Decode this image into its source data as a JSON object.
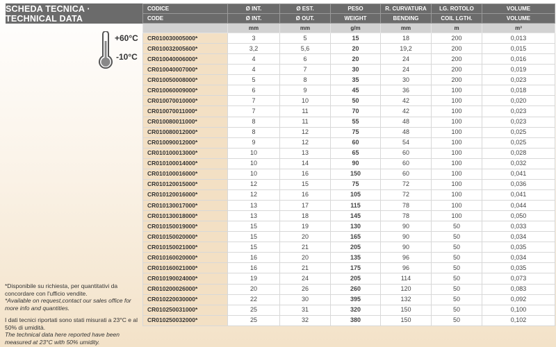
{
  "title": "SCHEDA TECNICA · TECHNICAL DATA",
  "temperature": {
    "max": "+60°C",
    "min": "-10°C",
    "icon": "thermometer-icon"
  },
  "header_it": [
    "CODICE",
    "Ø INT.",
    "Ø EST.",
    "PESO",
    "R. CURVATURA",
    "LG. ROTOLO",
    "VOLUME"
  ],
  "header_en": [
    "CODE",
    "Ø INT.",
    "Ø OUT.",
    "WEIGHT",
    "BENDING",
    "COIL LGTH.",
    "VOLUME"
  ],
  "units": [
    "",
    "mm",
    "mm",
    "g/m",
    "mm",
    "m",
    "m³"
  ],
  "rows": [
    [
      "CR010030005000*",
      "3",
      "5",
      "15",
      "18",
      "200",
      "0,013"
    ],
    [
      "CR010032005600*",
      "3,2",
      "5,6",
      "20",
      "19,2",
      "200",
      "0,015"
    ],
    [
      "CR010040006000*",
      "4",
      "6",
      "20",
      "24",
      "200",
      "0,016"
    ],
    [
      "CR010040007000*",
      "4",
      "7",
      "30",
      "24",
      "200",
      "0,019"
    ],
    [
      "CR010050008000*",
      "5",
      "8",
      "35",
      "30",
      "200",
      "0,023"
    ],
    [
      "CR010060009000*",
      "6",
      "9",
      "45",
      "36",
      "100",
      "0,018"
    ],
    [
      "CR010070010000*",
      "7",
      "10",
      "50",
      "42",
      "100",
      "0,020"
    ],
    [
      "CR010070011000*",
      "7",
      "11",
      "70",
      "42",
      "100",
      "0,023"
    ],
    [
      "CR010080011000*",
      "8",
      "11",
      "55",
      "48",
      "100",
      "0,023"
    ],
    [
      "CR010080012000*",
      "8",
      "12",
      "75",
      "48",
      "100",
      "0,025"
    ],
    [
      "CR010090012000*",
      "9",
      "12",
      "60",
      "54",
      "100",
      "0,025"
    ],
    [
      "CR010100013000*",
      "10",
      "13",
      "65",
      "60",
      "100",
      "0,028"
    ],
    [
      "CR010100014000*",
      "10",
      "14",
      "90",
      "60",
      "100",
      "0,032"
    ],
    [
      "CR010100016000*",
      "10",
      "16",
      "150",
      "60",
      "100",
      "0,041"
    ],
    [
      "CR010120015000*",
      "12",
      "15",
      "75",
      "72",
      "100",
      "0,036"
    ],
    [
      "CR010120016000*",
      "12",
      "16",
      "105",
      "72",
      "100",
      "0,041"
    ],
    [
      "CR010130017000*",
      "13",
      "17",
      "115",
      "78",
      "100",
      "0,044"
    ],
    [
      "CR010130018000*",
      "13",
      "18",
      "145",
      "78",
      "100",
      "0,050"
    ],
    [
      "CR010150019000*",
      "15",
      "19",
      "130",
      "90",
      "50",
      "0,033"
    ],
    [
      "CR010150020000*",
      "15",
      "20",
      "165",
      "90",
      "50",
      "0,034"
    ],
    [
      "CR010150021000*",
      "15",
      "21",
      "205",
      "90",
      "50",
      "0,035"
    ],
    [
      "CR010160020000*",
      "16",
      "20",
      "135",
      "96",
      "50",
      "0,034"
    ],
    [
      "CR010160021000*",
      "16",
      "21",
      "175",
      "96",
      "50",
      "0,035"
    ],
    [
      "CR010190024000*",
      "19",
      "24",
      "205",
      "114",
      "50",
      "0,073"
    ],
    [
      "CR010200026000*",
      "20",
      "26",
      "260",
      "120",
      "50",
      "0,083"
    ],
    [
      "CR010220030000*",
      "22",
      "30",
      "395",
      "132",
      "50",
      "0,092"
    ],
    [
      "CR010250031000*",
      "25",
      "31",
      "320",
      "150",
      "50",
      "0,100"
    ],
    [
      "CR010250032000*",
      "25",
      "32",
      "380",
      "150",
      "50",
      "0,102"
    ]
  ],
  "notes": {
    "availability_it": "*Disponibile su richiesta, per quantitativi da concordare con l'ufficio vendite.",
    "availability_en": "*Available on request,contact our sales office for more info and quantities.",
    "conditions_it": "I dati tecnici riportati sono stati misurati a 23°C e al 50% di umidità.",
    "conditions_en": "The technical data here reported have been measured at 23°C with 50% umidity."
  }
}
